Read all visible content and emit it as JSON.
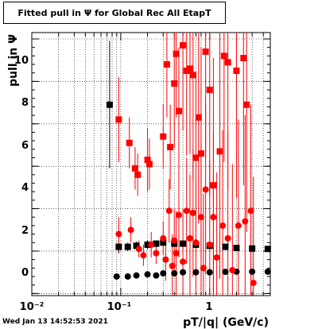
{
  "chart_data": {
    "type": "scatter",
    "title": "Fitted pull in  Ψ  for Global Rec All EtapT",
    "xlabel": "pT/|q| (GeV/c)",
    "ylabel": "pull in  Ψ",
    "xscale": "log",
    "xlim": [
      0.01,
      4.8
    ],
    "ylim": [
      -1.1,
      11.3
    ],
    "x_tick_labels": [
      "10⁻²",
      "10⁻¹",
      "1"
    ],
    "y_tick_labels": [
      "0",
      "2",
      "4",
      "6",
      "8",
      "10"
    ],
    "grid": true,
    "series": [
      {
        "marker": "square",
        "color": "#000000",
        "points": [
          {
            "x": 0.075,
            "y": 7.9,
            "err": 3.0
          },
          {
            "x": 0.095,
            "y": 1.2,
            "err": 0.3
          },
          {
            "x": 0.12,
            "y": 1.2,
            "err": 0.2
          },
          {
            "x": 0.15,
            "y": 1.25,
            "err": 0.2
          },
          {
            "x": 0.2,
            "y": 1.3,
            "err": 0.2
          },
          {
            "x": 0.25,
            "y": 1.35,
            "err": 0.15
          },
          {
            "x": 0.3,
            "y": 1.4,
            "err": 0.15
          },
          {
            "x": 0.4,
            "y": 1.35,
            "err": 0.1
          },
          {
            "x": 0.5,
            "y": 1.35,
            "err": 0.1
          },
          {
            "x": 0.7,
            "y": 1.3,
            "err": 0.1
          },
          {
            "x": 1.0,
            "y": 1.25,
            "err": 0.08
          },
          {
            "x": 1.5,
            "y": 1.2,
            "err": 0.08
          },
          {
            "x": 2.0,
            "y": 1.15,
            "err": 0.06
          },
          {
            "x": 3.0,
            "y": 1.12,
            "err": 0.05
          },
          {
            "x": 4.5,
            "y": 1.1,
            "err": 0.05
          }
        ]
      },
      {
        "marker": "circle",
        "color": "#000000",
        "points": [
          {
            "x": 0.09,
            "y": -0.2,
            "err": 0.1
          },
          {
            "x": 0.12,
            "y": -0.2,
            "err": 0.08
          },
          {
            "x": 0.15,
            "y": -0.15,
            "err": 0.08
          },
          {
            "x": 0.2,
            "y": -0.1,
            "err": 0.08
          },
          {
            "x": 0.25,
            "y": -0.15,
            "err": 0.06
          },
          {
            "x": 0.3,
            "y": -0.05,
            "err": 0.06
          },
          {
            "x": 0.4,
            "y": -0.05,
            "err": 0.05
          },
          {
            "x": 0.5,
            "y": 0.0,
            "err": 0.05
          },
          {
            "x": 0.7,
            "y": 0.0,
            "err": 0.05
          },
          {
            "x": 1.0,
            "y": 0.0,
            "err": 0.04
          },
          {
            "x": 1.5,
            "y": 0.02,
            "err": 0.04
          },
          {
            "x": 2.0,
            "y": 0.03,
            "err": 0.03
          },
          {
            "x": 3.0,
            "y": 0.03,
            "err": 0.03
          },
          {
            "x": 4.5,
            "y": 0.03,
            "err": 0.03
          }
        ]
      },
      {
        "marker": "square",
        "color": "#ff0000",
        "points": [
          {
            "x": 0.095,
            "y": 7.2,
            "err": 2.0
          },
          {
            "x": 0.125,
            "y": 6.1,
            "err": 1.2
          },
          {
            "x": 0.145,
            "y": 4.9,
            "err": 1.0
          },
          {
            "x": 0.155,
            "y": 4.6,
            "err": 1.0
          },
          {
            "x": 0.2,
            "y": 5.3,
            "err": 1.5
          },
          {
            "x": 0.21,
            "y": 5.1,
            "err": 1.2
          },
          {
            "x": 0.3,
            "y": 6.4,
            "err": 1.5
          },
          {
            "x": 0.33,
            "y": 9.8,
            "err": 2.5
          },
          {
            "x": 0.36,
            "y": 5.9,
            "err": 2.0
          },
          {
            "x": 0.4,
            "y": 8.9,
            "err": 3.0
          },
          {
            "x": 0.42,
            "y": 10.3,
            "err": 3.0
          },
          {
            "x": 0.45,
            "y": 7.6,
            "err": 3.0
          },
          {
            "x": 0.5,
            "y": 10.7,
            "err": 4.0
          },
          {
            "x": 0.55,
            "y": 9.5,
            "err": 4.0
          },
          {
            "x": 0.6,
            "y": 9.6,
            "err": 4.0
          },
          {
            "x": 0.65,
            "y": 9.3,
            "err": 5.0
          },
          {
            "x": 0.7,
            "y": 5.4,
            "err": 4.0
          },
          {
            "x": 0.75,
            "y": 7.3,
            "err": 5.0
          },
          {
            "x": 0.8,
            "y": 5.6,
            "err": 5.0
          },
          {
            "x": 0.9,
            "y": 10.4,
            "err": 5.0
          },
          {
            "x": 1.0,
            "y": 8.6,
            "err": 5.0
          },
          {
            "x": 1.1,
            "y": 4.1,
            "err": 6.0
          },
          {
            "x": 1.3,
            "y": 5.7,
            "err": 6.0
          },
          {
            "x": 1.45,
            "y": 10.2,
            "err": 5.0
          },
          {
            "x": 1.6,
            "y": 9.9,
            "err": 6.0
          },
          {
            "x": 2.0,
            "y": 9.5,
            "err": 6.0
          },
          {
            "x": 2.4,
            "y": 10.1,
            "err": 6.0
          },
          {
            "x": 2.6,
            "y": 7.9,
            "err": 6.0
          }
        ]
      },
      {
        "marker": "circle",
        "color": "#ff0000",
        "points": [
          {
            "x": 0.095,
            "y": 1.8,
            "err": 0.8
          },
          {
            "x": 0.13,
            "y": 2.0,
            "err": 0.6
          },
          {
            "x": 0.16,
            "y": 1.1,
            "err": 0.4
          },
          {
            "x": 0.18,
            "y": 0.8,
            "err": 0.5
          },
          {
            "x": 0.22,
            "y": 1.3,
            "err": 0.6
          },
          {
            "x": 0.25,
            "y": 0.9,
            "err": 0.5
          },
          {
            "x": 0.3,
            "y": 1.6,
            "err": 0.8
          },
          {
            "x": 0.32,
            "y": 0.6,
            "err": 1.0
          },
          {
            "x": 0.35,
            "y": 2.9,
            "err": 1.5
          },
          {
            "x": 0.38,
            "y": 0.3,
            "err": 1.5
          },
          {
            "x": 0.4,
            "y": 1.5,
            "err": 1.5
          },
          {
            "x": 0.42,
            "y": 0.9,
            "err": 2.0
          },
          {
            "x": 0.45,
            "y": 2.7,
            "err": 2.0
          },
          {
            "x": 0.5,
            "y": 0.5,
            "err": 2.5
          },
          {
            "x": 0.55,
            "y": 2.9,
            "err": 2.5
          },
          {
            "x": 0.6,
            "y": 1.6,
            "err": 3.0
          },
          {
            "x": 0.65,
            "y": 2.8,
            "err": 3.0
          },
          {
            "x": 0.7,
            "y": 1.4,
            "err": 3.0
          },
          {
            "x": 0.8,
            "y": 2.6,
            "err": 3.5
          },
          {
            "x": 0.85,
            "y": 0.2,
            "err": 3.5
          },
          {
            "x": 0.9,
            "y": 3.9,
            "err": 4.0
          },
          {
            "x": 1.0,
            "y": 1.3,
            "err": 4.0
          },
          {
            "x": 1.1,
            "y": 2.6,
            "err": 4.0
          },
          {
            "x": 1.2,
            "y": 0.7,
            "err": 4.0
          },
          {
            "x": 1.4,
            "y": 2.2,
            "err": 4.5
          },
          {
            "x": 1.6,
            "y": 1.6,
            "err": 5.0
          },
          {
            "x": 1.8,
            "y": 0.1,
            "err": 5.0
          },
          {
            "x": 2.1,
            "y": 2.2,
            "err": 5.0
          },
          {
            "x": 2.5,
            "y": 2.4,
            "err": 5.0
          },
          {
            "x": 2.9,
            "y": 2.9,
            "err": 5.0
          },
          {
            "x": 3.1,
            "y": -0.5,
            "err": 5.0
          }
        ]
      }
    ]
  },
  "footer": {
    "timestamp": "Wed Jan 13 14:52:53 2021"
  }
}
